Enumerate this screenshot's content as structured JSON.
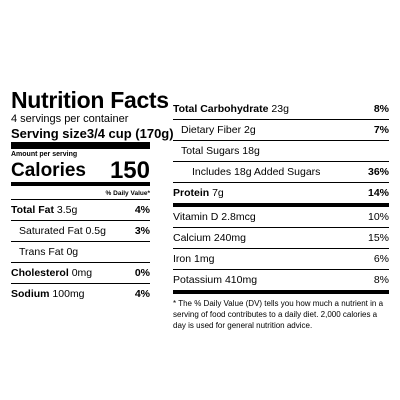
{
  "title": "Nutrition Facts",
  "servings_per_container": "4 servings per container",
  "serving_size": {
    "label": "Serving size",
    "value": "3/4 cup (170g)"
  },
  "amount_per_serving": "Amount per serving",
  "calories": {
    "label": "Calories",
    "value": "150"
  },
  "dv_header": "% Daily Value*",
  "left_rows": [
    {
      "name": "Total Fat",
      "amount": "3.5g",
      "dv": "4%"
    },
    {
      "name": "Saturated Fat",
      "amount": "0.5g",
      "dv": "3%"
    },
    {
      "name": "Trans Fat",
      "amount": "0g",
      "dv": ""
    },
    {
      "name": "Cholesterol",
      "amount": "0mg",
      "dv": "0%"
    },
    {
      "name": "Sodium",
      "amount": "100mg",
      "dv": "4%"
    }
  ],
  "right_rows": [
    {
      "name": "Total Carbohydrate",
      "amount": "23g",
      "dv": "8%"
    },
    {
      "name": "Dietary Fiber",
      "amount": "2g",
      "dv": "7%"
    },
    {
      "name": "Total Sugars",
      "amount": "18g",
      "dv": ""
    },
    {
      "name": "Includes 18g Added Sugars",
      "amount": "",
      "dv": "36%"
    },
    {
      "name": "Protein",
      "amount": "7g",
      "dv": "14%"
    }
  ],
  "vitamins": [
    {
      "name": "Vitamin D",
      "amount": "2.8mcg",
      "dv": "10%"
    },
    {
      "name": "Calcium",
      "amount": "240mg",
      "dv": "15%"
    },
    {
      "name": "Iron",
      "amount": "1mg",
      "dv": "6%"
    },
    {
      "name": "Potassium",
      "amount": "410mg",
      "dv": "8%"
    }
  ],
  "footnote": "* The % Daily Value (DV) tells you how much a nutrient in a serving of food contributes to a daily diet. 2,000 calories a day is used for general nutrition advice."
}
